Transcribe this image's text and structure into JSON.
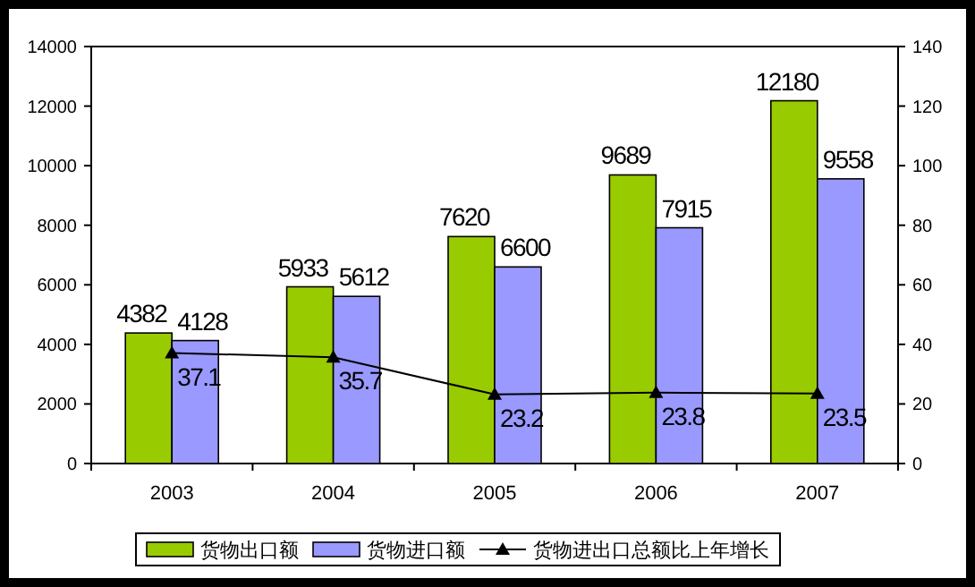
{
  "chart_data": {
    "type": "bar",
    "categories": [
      "2003",
      "2004",
      "2005",
      "2006",
      "2007"
    ],
    "series": [
      {
        "name": "货物出口额",
        "color": "#99cc00",
        "values": [
          4382,
          5933,
          7620,
          9689,
          12180
        ]
      },
      {
        "name": "货物进口额",
        "color": "#9999ff",
        "values": [
          4128,
          5612,
          6600,
          7915,
          9558
        ]
      },
      {
        "name": "货物进出口总额比上年增长",
        "type": "line",
        "axis": "y2",
        "color": "#000000",
        "values": [
          37.1,
          35.7,
          23.2,
          23.8,
          23.5
        ],
        "marker": "triangle"
      }
    ],
    "ylim": [
      0,
      14000
    ],
    "yticks": [
      0,
      2000,
      4000,
      6000,
      8000,
      10000,
      12000,
      14000
    ],
    "y2lim": [
      0,
      140
    ],
    "y2ticks": [
      0,
      20,
      40,
      60,
      80,
      100,
      120,
      140
    ],
    "data_labels": true,
    "legend": "bottom",
    "grid": false
  }
}
